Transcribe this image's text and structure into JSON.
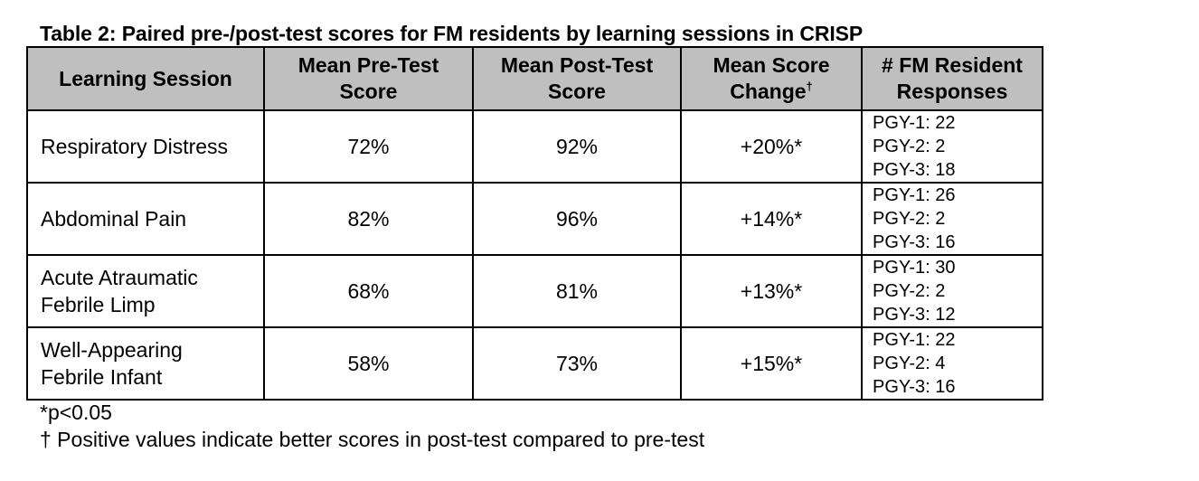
{
  "caption": "Table 2: Paired pre-/post-test scores for FM residents by learning sessions in CRISP",
  "headers": {
    "session": "Learning Session",
    "pre_line1": "Mean Pre-Test",
    "pre_line2": "Score",
    "post_line1": "Mean Post-Test",
    "post_line2": "Score",
    "change_line1": "Mean Score",
    "change_line2": "Change",
    "change_mark": "†",
    "responses_line1": "# FM Resident",
    "responses_line2": "Responses"
  },
  "rows": [
    {
      "session_line1": "Respiratory Distress",
      "session_line2": "",
      "pre": "72%",
      "post": "92%",
      "change": "+20%*",
      "responses": [
        "PGY-1: 22",
        "PGY-2: 2",
        "PGY-3: 18"
      ]
    },
    {
      "session_line1": "Abdominal Pain",
      "session_line2": "",
      "pre": "82%",
      "post": "96%",
      "change": "+14%*",
      "responses": [
        "PGY-1: 26",
        "PGY-2: 2",
        "PGY-3: 16"
      ]
    },
    {
      "session_line1": "Acute Atraumatic",
      "session_line2": "Febrile Limp",
      "pre": "68%",
      "post": "81%",
      "change": "+13%*",
      "responses": [
        "PGY-1: 30",
        "PGY-2: 2",
        "PGY-3: 12"
      ]
    },
    {
      "session_line1": "Well-Appearing",
      "session_line2": "Febrile Infant",
      "pre": "58%",
      "post": "73%",
      "change": "+15%*",
      "responses": [
        "PGY-1: 22",
        "PGY-2: 4",
        "PGY-3: 16"
      ]
    }
  ],
  "footnotes": {
    "significance": "*p<0.05",
    "dagger": "† Positive values indicate better scores in post-test compared to pre-test"
  }
}
